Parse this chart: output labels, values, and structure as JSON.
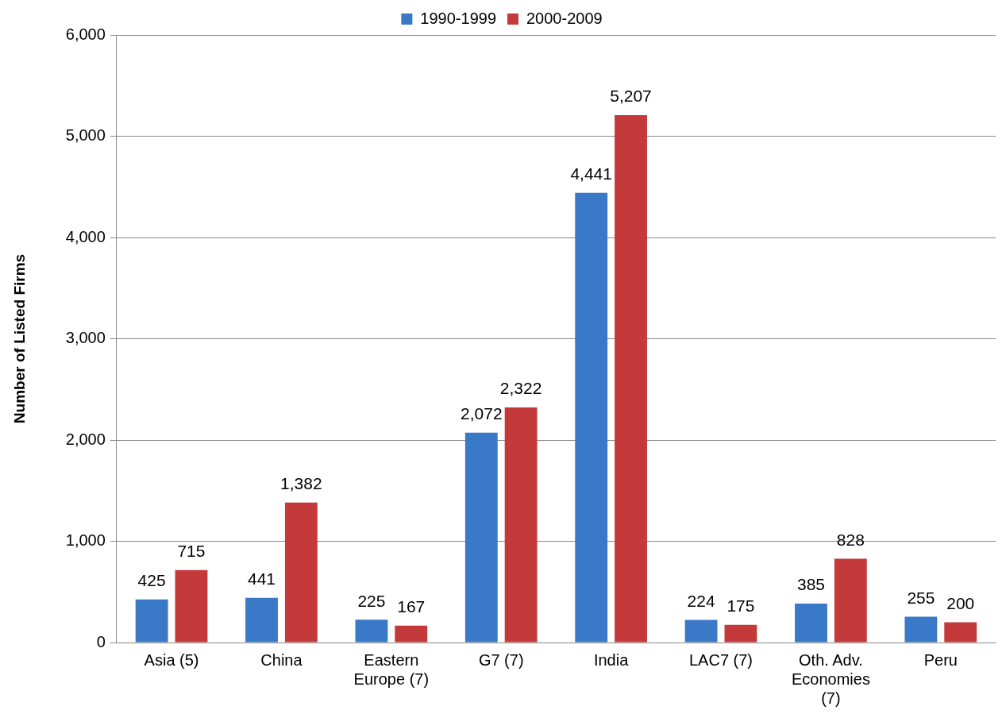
{
  "chart_data": {
    "type": "bar",
    "ylabel": "Number of Listed Firms",
    "categories": [
      "Asia (5)",
      "China",
      "Eastern Europe (7)",
      "G7 (7)",
      "India",
      "LAC7 (7)",
      "Oth. Adv. Economies (7)",
      "Peru"
    ],
    "series": [
      {
        "name": "1990-1999",
        "color": "#3a78c8",
        "values": [
          425,
          441,
          225,
          2072,
          4441,
          224,
          385,
          255
        ],
        "value_labels": [
          "425",
          "441",
          "225",
          "2,072",
          "4,441",
          "224",
          "385",
          "255"
        ]
      },
      {
        "name": "2000-2009",
        "color": "#c43a3a",
        "values": [
          715,
          1382,
          167,
          2322,
          5207,
          175,
          828,
          200
        ],
        "value_labels": [
          "715",
          "1,382",
          "167",
          "2,322",
          "5,207",
          "175",
          "828",
          "200"
        ]
      }
    ],
    "ylim": [
      0,
      6000
    ],
    "yticks": [
      {
        "value": 0,
        "label": "0"
      },
      {
        "value": 1000,
        "label": "1,000"
      },
      {
        "value": 2000,
        "label": "2,000"
      },
      {
        "value": 3000,
        "label": "3,000"
      },
      {
        "value": 4000,
        "label": "4,000"
      },
      {
        "value": 5000,
        "label": "5,000"
      },
      {
        "value": 6000,
        "label": "6,000"
      }
    ],
    "grid": "y",
    "legend": "top"
  }
}
